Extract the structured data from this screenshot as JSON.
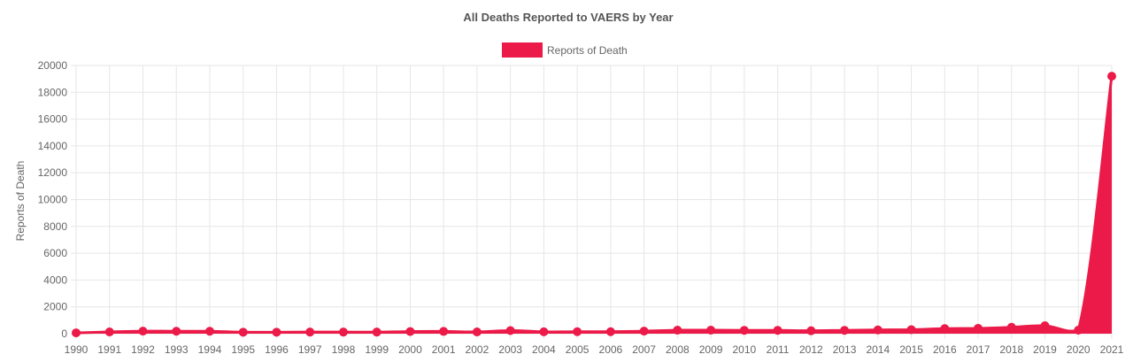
{
  "colors": {
    "series": "#EB1A48",
    "grid": "#E6E6E6",
    "text": "#666666",
    "title": "#555555"
  },
  "chart_data": {
    "type": "area",
    "title": "All Deaths Reported to VAERS by Year",
    "xlabel": "",
    "ylabel": "Reports of Death",
    "ylim": [
      0,
      20000
    ],
    "yticks": [
      0,
      2000,
      4000,
      6000,
      8000,
      10000,
      12000,
      14000,
      16000,
      18000,
      20000
    ],
    "grid": true,
    "legend": "top-center",
    "categories": [
      "1990",
      "1991",
      "1992",
      "1993",
      "1994",
      "1995",
      "1996",
      "1997",
      "1998",
      "1999",
      "2000",
      "2001",
      "2002",
      "2003",
      "2004",
      "2005",
      "2006",
      "2007",
      "2008",
      "2009",
      "2010",
      "2011",
      "2012",
      "2013",
      "2014",
      "2015",
      "2016",
      "2017",
      "2018",
      "2019",
      "2020",
      "2021"
    ],
    "series": [
      {
        "name": "Reports of Death",
        "values": [
          60,
          130,
          190,
          180,
          180,
          110,
          110,
          120,
          120,
          120,
          160,
          170,
          130,
          230,
          140,
          150,
          150,
          190,
          260,
          260,
          250,
          250,
          220,
          250,
          280,
          300,
          380,
          400,
          480,
          590,
          260,
          19200
        ]
      }
    ]
  }
}
